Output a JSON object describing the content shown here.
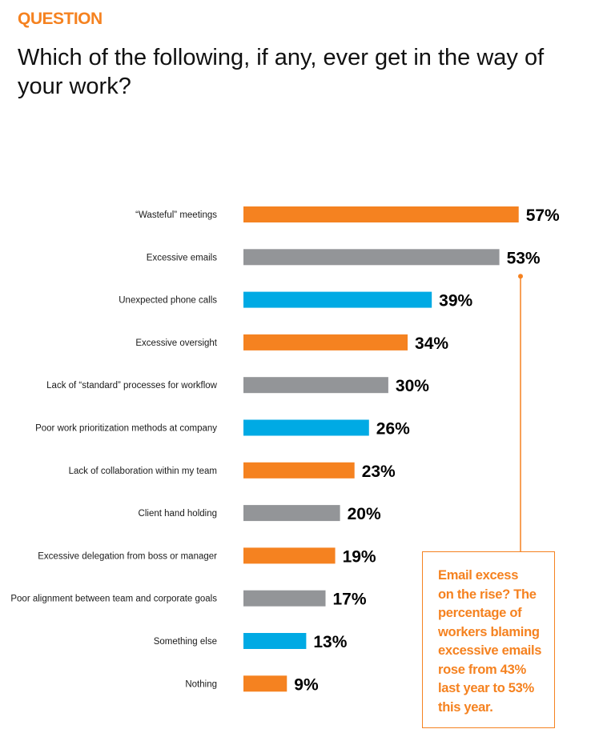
{
  "header": {
    "eyebrow": "QUESTION",
    "title": "Which of the following, if any, ever get in the way of your work?"
  },
  "colors": {
    "orange": "#F58220",
    "gray": "#939598",
    "blue": "#00AAE4"
  },
  "chart_data": {
    "type": "bar",
    "orientation": "horizontal",
    "title": "Which of the following, if any, ever get in the way of your work?",
    "xlabel": "",
    "ylabel": "",
    "xlim": [
      0,
      100
    ],
    "grid": false,
    "value_format": "{v}%",
    "categories": [
      "“Wasteful” meetings",
      "Excessive emails",
      "Unexpected phone calls",
      "Excessive oversight",
      "Lack of “standard” processes for workflow",
      "Poor work prioritization methods at company",
      "Lack of collaboration within my team",
      "Client hand holding",
      "Excessive delegation from boss or manager",
      "Poor alignment between team and corporate goals",
      "Something else",
      "Nothing"
    ],
    "values": [
      57,
      53,
      39,
      34,
      30,
      26,
      23,
      20,
      19,
      17,
      13,
      9
    ],
    "value_labels": [
      "57%",
      "53%",
      "39%",
      "34%",
      "30%",
      "26%",
      "23%",
      "20%",
      "19%",
      "17%",
      "13%",
      "9%"
    ],
    "bar_colors": [
      "orange",
      "gray",
      "blue",
      "orange",
      "gray",
      "blue",
      "orange",
      "gray",
      "orange",
      "gray",
      "blue",
      "orange"
    ],
    "annotation": {
      "target_category": "Excessive emails",
      "text": "Email excess on the rise? The percentage of workers blaming excessive emails rose from 43% last year to 53% this year.",
      "lines": [
        "Email excess",
        "on the rise? The",
        "percentage of",
        "workers blaming",
        "excessive emails",
        "rose from 43%",
        "last year to 53%",
        "this year."
      ]
    }
  }
}
